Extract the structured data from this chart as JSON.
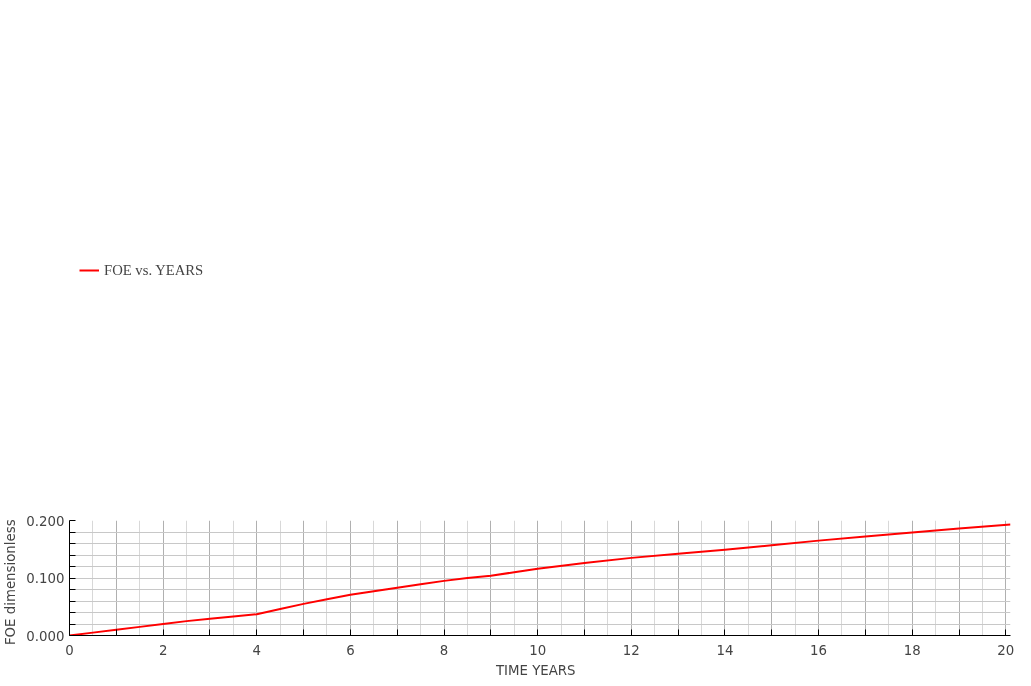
{
  "chart_data": {
    "type": "line",
    "xlabel": "TIME   YEARS",
    "ylabel": "FOE   dimensionless",
    "x": [
      0,
      0.5,
      1,
      1.5,
      2,
      2.5,
      3,
      3.5,
      4,
      4.5,
      5,
      5.5,
      6,
      6.5,
      7,
      7.5,
      8,
      8.5,
      9,
      9.5,
      10,
      11,
      12,
      13,
      14,
      15,
      16,
      17,
      18,
      19,
      20.1
    ],
    "series": [
      {
        "name": "FOE vs. YEARS",
        "color": "#ff0000",
        "values": [
          0,
          0.005,
          0.01,
          0.015,
          0.02,
          0.025,
          0.029,
          0.033,
          0.037,
          0.046,
          0.055,
          0.063,
          0.071,
          0.077,
          0.083,
          0.089,
          0.095,
          0.1,
          0.104,
          0.11,
          0.116,
          0.126,
          0.135,
          0.142,
          0.149,
          0.157,
          0.165,
          0.172,
          0.179,
          0.186,
          0.193
        ]
      }
    ],
    "xlim": [
      0,
      20.1
    ],
    "ylim": [
      0,
      0.2
    ],
    "xticks": [
      0,
      {
        "value": 1,
        "label": null
      },
      2,
      {
        "value": 3,
        "label": null
      },
      4,
      {
        "value": 5,
        "label": null
      },
      6,
      {
        "value": 7,
        "label": null
      },
      8,
      {
        "value": 9,
        "label": null
      },
      10,
      {
        "value": 11,
        "label": null
      },
      12,
      {
        "value": 13,
        "label": null
      },
      14,
      {
        "value": 15,
        "label": null
      },
      16,
      {
        "value": 17,
        "label": null
      },
      18,
      {
        "value": 19,
        "label": null
      },
      20
    ],
    "yticks": [
      {
        "value": 0,
        "label": "0.000"
      },
      {
        "value": 0.02,
        "label": null
      },
      {
        "value": 0.04,
        "label": null
      },
      {
        "value": 0.06,
        "label": null
      },
      {
        "value": 0.08,
        "label": null
      },
      {
        "value": 0.1,
        "label": "0.100"
      },
      {
        "value": 0.12,
        "label": null
      },
      {
        "value": 0.14,
        "label": null
      },
      {
        "value": 0.16,
        "label": null
      },
      {
        "value": 0.18,
        "label": null
      },
      {
        "value": 0.2,
        "label": "0.200"
      }
    ],
    "grid": true,
    "legend": "top left",
    "marker": "none",
    "line_style": "solid"
  }
}
